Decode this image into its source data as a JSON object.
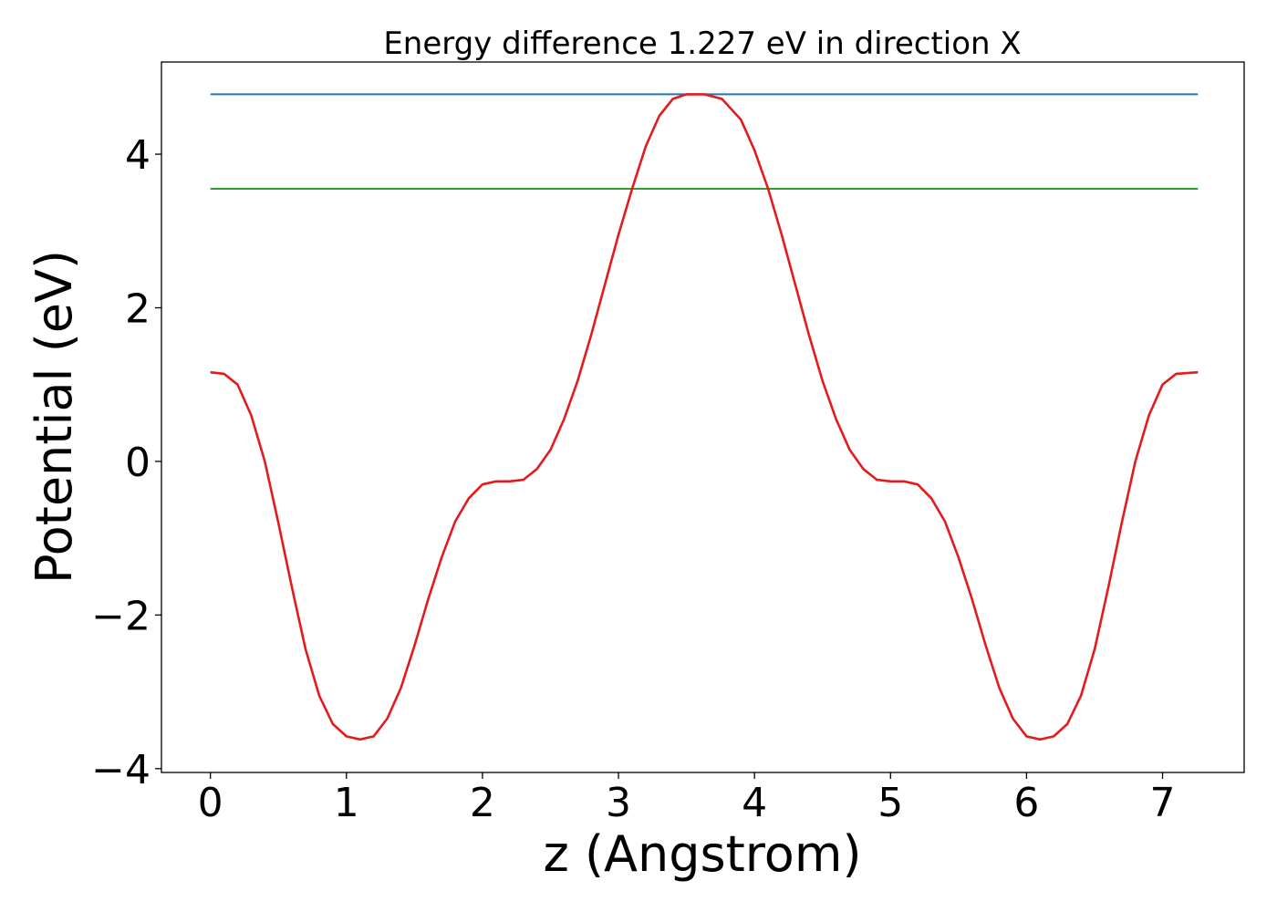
{
  "chart_data": {
    "type": "line",
    "title": "Energy difference 1.227 eV in direction X",
    "xlabel": "z (Angstrom)",
    "ylabel": "Potential (eV)",
    "xlim": [
      -0.36,
      7.6
    ],
    "ylim": [
      -4.05,
      5.2
    ],
    "xticks": [
      0,
      1,
      2,
      3,
      4,
      5,
      6,
      7
    ],
    "yticks": [
      -4,
      -2,
      0,
      2,
      4
    ],
    "xtick_labels": [
      "0",
      "1",
      "2",
      "3",
      "4",
      "5",
      "6",
      "7"
    ],
    "ytick_labels": [
      "−4",
      "−2",
      "0",
      "2",
      "4"
    ],
    "grid": false,
    "series": [
      {
        "color": "#1f77b4",
        "x": [
          0,
          7.26
        ],
        "y": [
          4.78,
          4.78
        ]
      },
      {
        "color": "#2ca02c",
        "x": [
          0,
          7.26
        ],
        "y": [
          3.55,
          3.55
        ]
      },
      {
        "color": "#e41a1c",
        "x": [
          0.0,
          0.1,
          0.2,
          0.3,
          0.4,
          0.5,
          0.6,
          0.7,
          0.8,
          0.9,
          1.0,
          1.1,
          1.2,
          1.3,
          1.4,
          1.5,
          1.6,
          1.7,
          1.8,
          1.9,
          2.0,
          2.1,
          2.2,
          2.3,
          2.4,
          2.5,
          2.6,
          2.7,
          2.8,
          2.9,
          3.0,
          3.1,
          3.2,
          3.3,
          3.4,
          3.5,
          3.63,
          3.76,
          3.9,
          4.0,
          4.1,
          4.2,
          4.3,
          4.4,
          4.5,
          4.6,
          4.7,
          4.8,
          4.9,
          5.0,
          5.1,
          5.2,
          5.3,
          5.4,
          5.5,
          5.6,
          5.7,
          5.8,
          5.9,
          6.0,
          6.1,
          6.2,
          6.3,
          6.4,
          6.5,
          6.6,
          6.7,
          6.8,
          6.9,
          7.0,
          7.1,
          7.26
        ],
        "y": [
          1.16,
          1.14,
          1.0,
          0.6,
          0.0,
          -0.8,
          -1.65,
          -2.45,
          -3.05,
          -3.42,
          -3.58,
          -3.62,
          -3.58,
          -3.35,
          -2.95,
          -2.4,
          -1.8,
          -1.25,
          -0.78,
          -0.48,
          -0.3,
          -0.26,
          -0.26,
          -0.24,
          -0.1,
          0.15,
          0.55,
          1.05,
          1.65,
          2.3,
          2.95,
          3.55,
          4.1,
          4.5,
          4.72,
          4.78,
          4.78,
          4.72,
          4.45,
          4.05,
          3.55,
          2.95,
          2.3,
          1.65,
          1.05,
          0.55,
          0.15,
          -0.1,
          -0.24,
          -0.26,
          -0.26,
          -0.3,
          -0.48,
          -0.78,
          -1.25,
          -1.8,
          -2.4,
          -2.95,
          -3.35,
          -3.58,
          -3.62,
          -3.58,
          -3.42,
          -3.05,
          -2.45,
          -1.65,
          -0.8,
          0.0,
          0.6,
          1.0,
          1.14,
          1.16
        ]
      }
    ]
  }
}
